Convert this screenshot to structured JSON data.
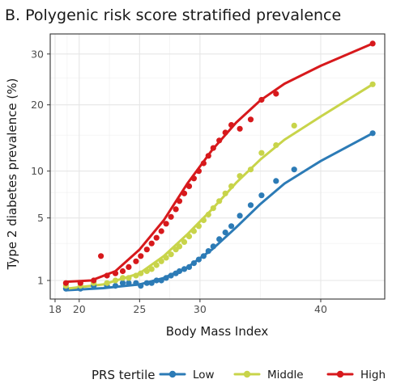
{
  "chart_data": {
    "type": "scatter",
    "title": "B. Polygenic risk score stratified prevalence",
    "xlabel": "Body Mass Index",
    "ylabel": "Type 2 diabetes prevalence (%)",
    "xlim": [
      17.6,
      45.3
    ],
    "xticks": [
      18,
      20,
      25,
      30,
      40
    ],
    "xtick_labels": [
      "18",
      "20",
      "25",
      "30",
      "40"
    ],
    "yticks": [
      1,
      5,
      10,
      20,
      30
    ],
    "ytick_labels": [
      "1",
      "5",
      "10",
      "20",
      "30"
    ],
    "y_scale": "square root",
    "y_axis_range": [
      0.4,
      34.5
    ],
    "grid": true,
    "legend": {
      "title": "PRS tertile",
      "position": "bottom"
    },
    "colors": {
      "Low": "#2c7bb6",
      "Middle": "#c8d44a",
      "High": "#d7191c"
    },
    "series": [
      {
        "name": "Low",
        "points": [
          [
            18.9,
            0.7
          ],
          [
            20.1,
            0.7
          ],
          [
            21.2,
            0.8
          ],
          [
            22.3,
            0.8
          ],
          [
            23.0,
            0.8
          ],
          [
            23.6,
            0.9
          ],
          [
            24.1,
            0.9
          ],
          [
            24.7,
            0.9
          ],
          [
            25.1,
            0.8
          ],
          [
            25.6,
            0.9
          ],
          [
            26.0,
            0.9
          ],
          [
            26.4,
            1.0
          ],
          [
            26.8,
            1.0
          ],
          [
            27.2,
            1.1
          ],
          [
            27.6,
            1.2
          ],
          [
            28.0,
            1.3
          ],
          [
            28.3,
            1.4
          ],
          [
            28.7,
            1.5
          ],
          [
            29.1,
            1.6
          ],
          [
            29.5,
            1.8
          ],
          [
            29.9,
            2.0
          ],
          [
            30.3,
            2.2
          ],
          [
            30.7,
            2.5
          ],
          [
            31.1,
            2.8
          ],
          [
            31.6,
            3.3
          ],
          [
            32.1,
            3.8
          ],
          [
            32.6,
            4.3
          ],
          [
            33.3,
            5.2
          ],
          [
            34.2,
            6.2
          ],
          [
            35.1,
            7.2
          ],
          [
            36.3,
            8.8
          ],
          [
            37.8,
            10.2
          ],
          [
            44.3,
            15.3
          ]
        ],
        "fit": [
          [
            18.9,
            0.65
          ],
          [
            22,
            0.72
          ],
          [
            25,
            0.85
          ],
          [
            27,
            1.1
          ],
          [
            29,
            1.6
          ],
          [
            31,
            2.6
          ],
          [
            33,
            4.2
          ],
          [
            35,
            6.3
          ],
          [
            37,
            8.5
          ],
          [
            40,
            11.3
          ],
          [
            44.3,
            15.3
          ]
        ]
      },
      {
        "name": "Middle",
        "points": [
          [
            18.9,
            0.8
          ],
          [
            20.1,
            0.8
          ],
          [
            21.2,
            0.9
          ],
          [
            22.3,
            0.9
          ],
          [
            23.0,
            1.0
          ],
          [
            23.6,
            1.1
          ],
          [
            24.1,
            1.1
          ],
          [
            24.7,
            1.2
          ],
          [
            25.1,
            1.3
          ],
          [
            25.6,
            1.4
          ],
          [
            26.0,
            1.5
          ],
          [
            26.4,
            1.7
          ],
          [
            26.8,
            1.9
          ],
          [
            27.2,
            2.1
          ],
          [
            27.6,
            2.3
          ],
          [
            28.0,
            2.6
          ],
          [
            28.3,
            2.8
          ],
          [
            28.7,
            3.1
          ],
          [
            29.1,
            3.5
          ],
          [
            29.5,
            3.9
          ],
          [
            29.9,
            4.3
          ],
          [
            30.3,
            4.8
          ],
          [
            30.7,
            5.3
          ],
          [
            31.1,
            5.9
          ],
          [
            31.6,
            6.6
          ],
          [
            32.1,
            7.4
          ],
          [
            32.6,
            8.2
          ],
          [
            33.3,
            9.4
          ],
          [
            34.2,
            10.2
          ],
          [
            35.1,
            12.4
          ],
          [
            36.3,
            13.5
          ],
          [
            37.8,
            16.5
          ],
          [
            44.3,
            23.8
          ]
        ],
        "fit": [
          [
            18.9,
            0.7
          ],
          [
            22,
            0.85
          ],
          [
            25,
            1.3
          ],
          [
            27,
            2.2
          ],
          [
            29,
            3.7
          ],
          [
            31,
            5.8
          ],
          [
            33,
            8.6
          ],
          [
            35,
            11.5
          ],
          [
            37,
            14.3
          ],
          [
            40,
            18.0
          ],
          [
            44.3,
            23.8
          ]
        ]
      },
      {
        "name": "High",
        "points": [
          [
            18.9,
            0.9
          ],
          [
            20.1,
            0.9
          ],
          [
            21.2,
            1.0
          ],
          [
            21.8,
            2.2
          ],
          [
            22.3,
            1.2
          ],
          [
            23.0,
            1.3
          ],
          [
            23.6,
            1.4
          ],
          [
            24.1,
            1.6
          ],
          [
            24.7,
            1.9
          ],
          [
            25.1,
            2.2
          ],
          [
            25.6,
            2.6
          ],
          [
            26.0,
            3.0
          ],
          [
            26.4,
            3.4
          ],
          [
            26.8,
            3.9
          ],
          [
            27.2,
            4.5
          ],
          [
            27.6,
            5.1
          ],
          [
            28.0,
            5.8
          ],
          [
            28.3,
            6.6
          ],
          [
            28.7,
            7.4
          ],
          [
            29.1,
            8.2
          ],
          [
            29.5,
            9.1
          ],
          [
            29.9,
            10.0
          ],
          [
            30.3,
            11.0
          ],
          [
            30.7,
            12.0
          ],
          [
            31.1,
            13.1
          ],
          [
            31.6,
            14.2
          ],
          [
            32.1,
            15.4
          ],
          [
            32.6,
            16.6
          ],
          [
            33.3,
            16.0
          ],
          [
            34.2,
            17.5
          ],
          [
            35.1,
            20.9
          ],
          [
            36.3,
            22.0
          ],
          [
            44.3,
            32.3
          ]
        ],
        "fit": [
          [
            18.9,
            0.95
          ],
          [
            21,
            1.0
          ],
          [
            23,
            1.4
          ],
          [
            25,
            2.6
          ],
          [
            27,
            4.8
          ],
          [
            29,
            8.6
          ],
          [
            31,
            12.8
          ],
          [
            33,
            17.0
          ],
          [
            35,
            20.8
          ],
          [
            37,
            23.9
          ],
          [
            40,
            27.5
          ],
          [
            44.3,
            32.3
          ]
        ]
      }
    ]
  }
}
